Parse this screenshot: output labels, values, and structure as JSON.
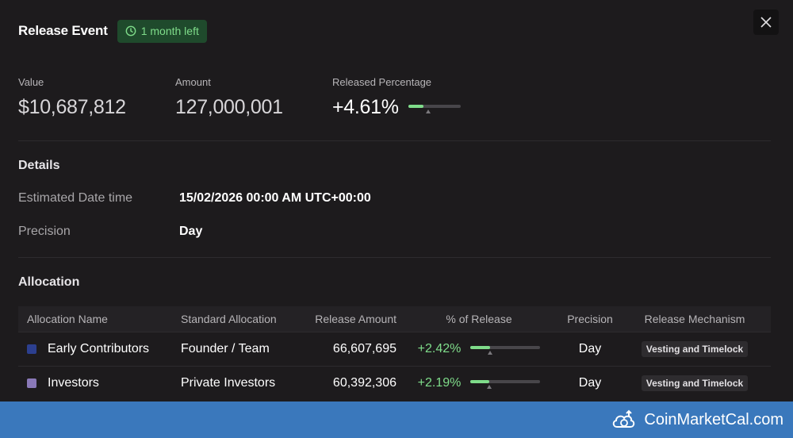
{
  "header": {
    "title": "Release Event",
    "badge": "1 month left"
  },
  "stats": {
    "value_label": "Value",
    "value": "$10,687,812",
    "amount_label": "Amount",
    "amount": "127,000,001",
    "released_label": "Released Percentage",
    "released_value": "+4.61%",
    "released_fraction": 0.3
  },
  "details": {
    "title": "Details",
    "date_label": "Estimated Date time",
    "date_value": "15/02/2026 00:00 AM UTC+00:00",
    "precision_label": "Precision",
    "precision_value": "Day"
  },
  "allocation": {
    "title": "Allocation",
    "columns": [
      "Allocation Name",
      "Standard Allocation",
      "Release Amount",
      "% of Release",
      "Precision",
      "Release Mechanism"
    ],
    "rows": [
      {
        "name": "Early Contributors",
        "color": "#2c3f8f",
        "standard": "Founder / Team",
        "amount": "66,607,695",
        "percent": "+2.42%",
        "fraction": 0.28,
        "precision": "Day",
        "mechanism": "Vesting and Timelock"
      },
      {
        "name": "Investors",
        "color": "#8a79b8",
        "standard": "Private Investors",
        "amount": "60,392,306",
        "percent": "+2.19%",
        "fraction": 0.27,
        "precision": "Day",
        "mechanism": "Vesting and Timelock"
      }
    ]
  },
  "footer": {
    "brand": "CoinMarketCal.com"
  }
}
